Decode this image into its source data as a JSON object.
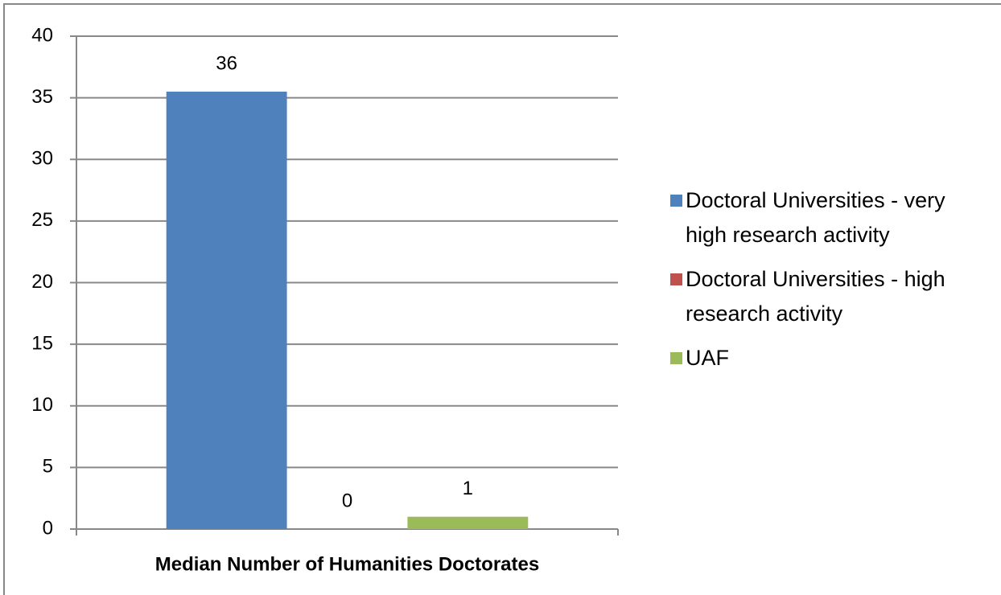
{
  "chart_data": {
    "type": "bar",
    "categories": [
      "Median Number of Humanities Doctorates"
    ],
    "series": [
      {
        "name": "Doctoral Universities - very high research activity",
        "color": "#4f81bd",
        "values": [
          35.5
        ],
        "value_labels": [
          "36"
        ]
      },
      {
        "name": "Doctoral Universities - high research activity",
        "color": "#c0504d",
        "values": [
          0
        ]
      },
      {
        "name": "UAF",
        "color": "#9bbb59",
        "values": [
          1
        ]
      }
    ],
    "ylim": [
      0,
      40
    ],
    "yticks": [
      0,
      5,
      10,
      15,
      20,
      25,
      30,
      35,
      40
    ],
    "grid": true,
    "legend": "right"
  }
}
